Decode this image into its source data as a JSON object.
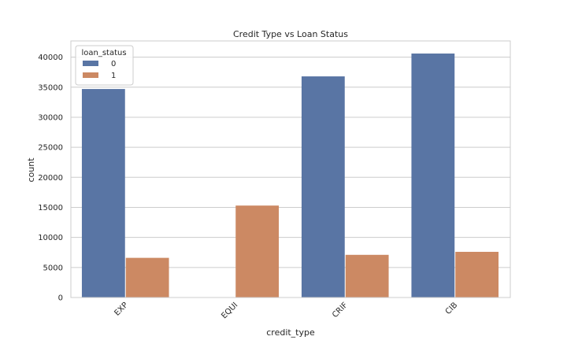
{
  "chart_data": {
    "type": "bar",
    "title": "Credit Type vs Loan Status",
    "xlabel": "credit_type",
    "ylabel": "count",
    "categories": [
      "EXP",
      "EQUI",
      "CRIF",
      "CIB"
    ],
    "series": [
      {
        "name": "0",
        "values": [
          34700,
          0,
          36800,
          40600
        ],
        "color": "#5975a4"
      },
      {
        "name": "1",
        "values": [
          6600,
          15300,
          7100,
          7600
        ],
        "color": "#cc8963"
      }
    ],
    "ylim": [
      0,
      42700
    ],
    "yticks": [
      0,
      5000,
      10000,
      15000,
      20000,
      25000,
      30000,
      35000,
      40000
    ],
    "grid": true,
    "legend": {
      "title": "loan_status",
      "placement": "top-left"
    }
  }
}
